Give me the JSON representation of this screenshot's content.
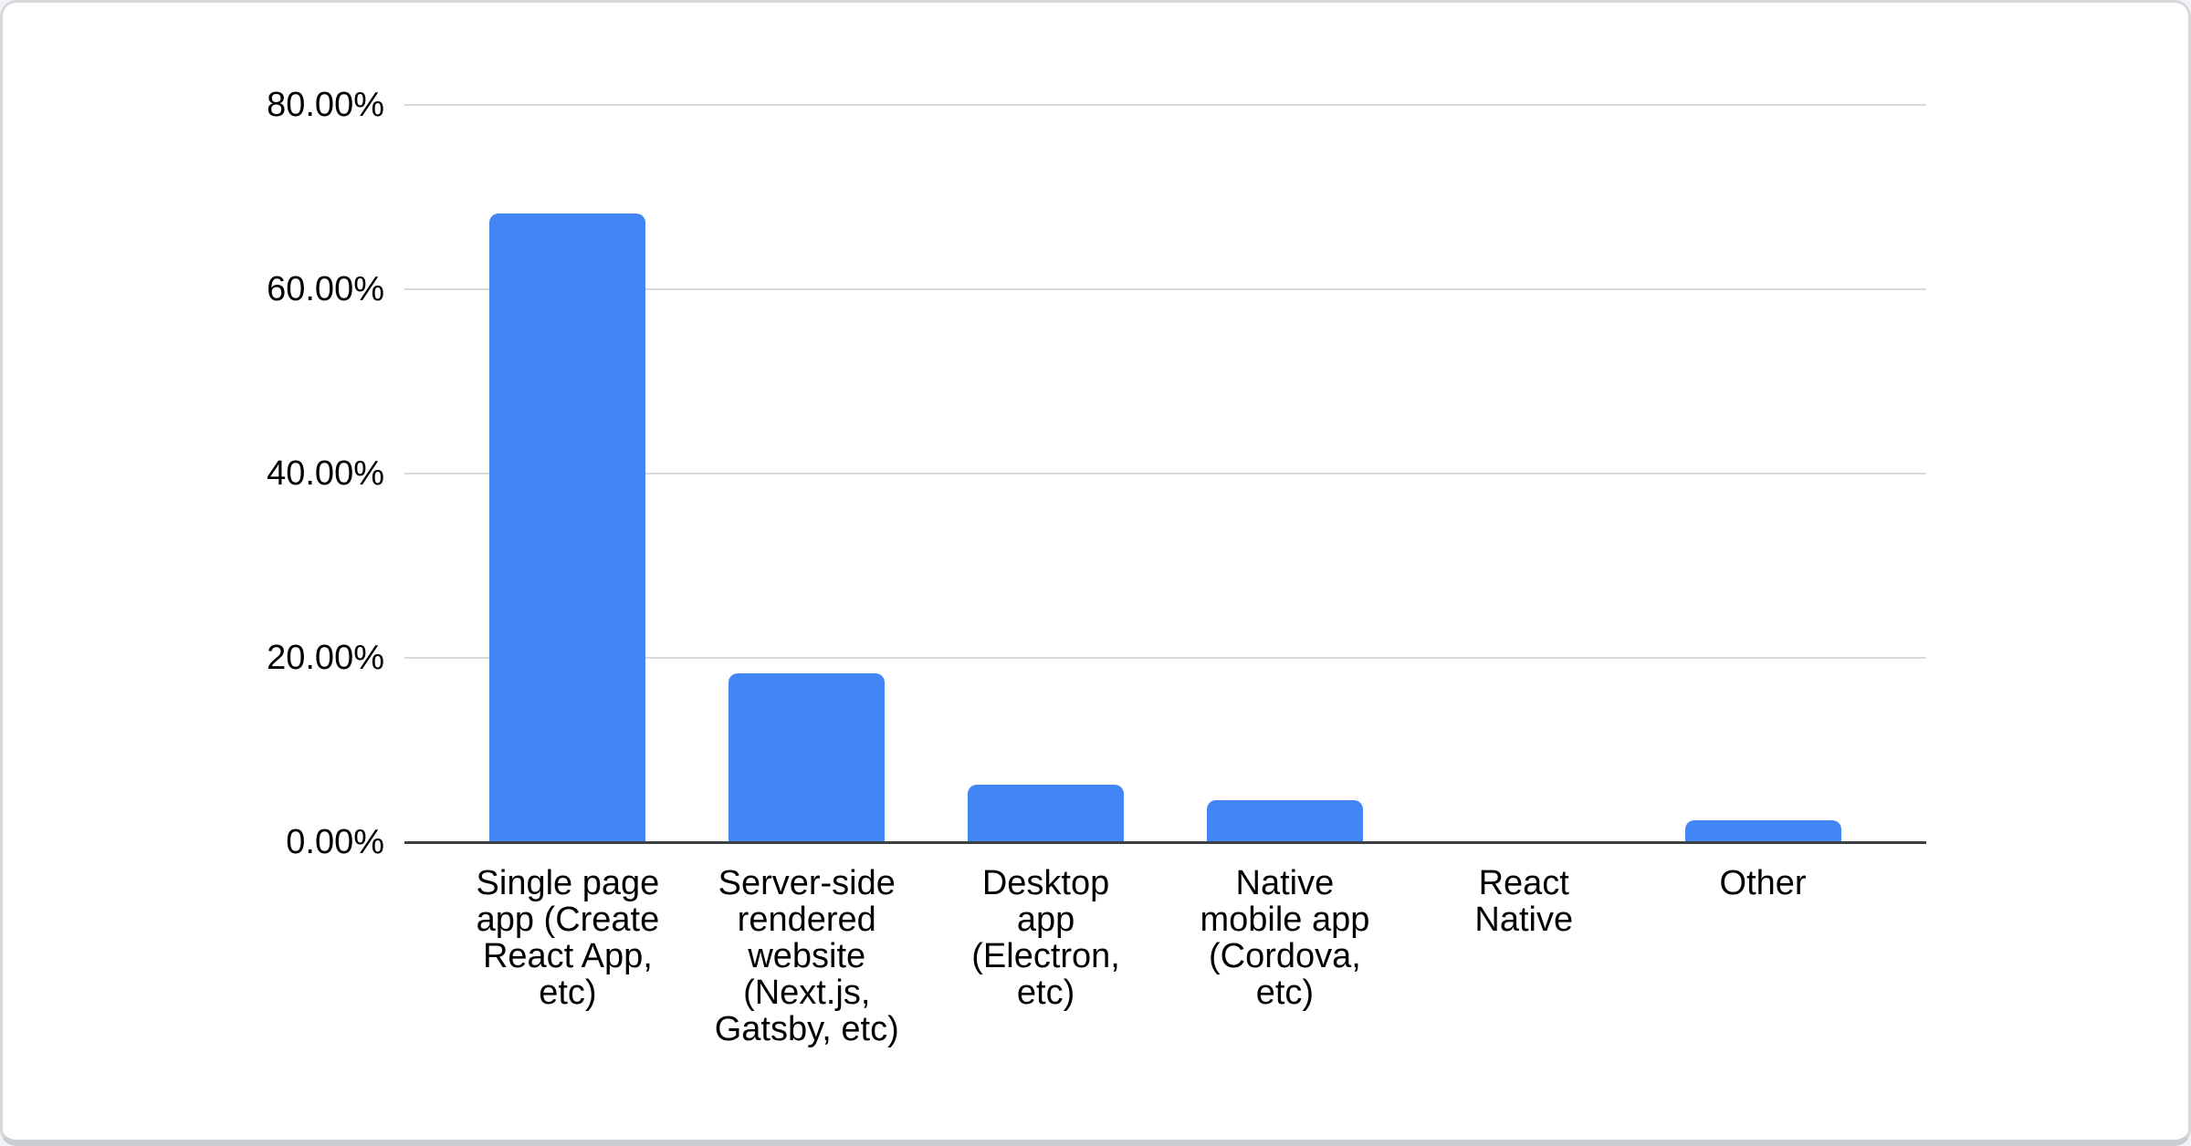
{
  "card": {
    "background": "#ffffff",
    "border_color": "#d5d9dd",
    "border_bottom_color": "#c9ced3"
  },
  "chart_data": {
    "type": "bar",
    "title": "",
    "xlabel": "",
    "ylabel": "",
    "categories": [
      "Single page app (Create React App, etc)",
      "Server-side rendered website (Next.js, Gatsby, etc)",
      "Desktop app (Electron, etc)",
      "Native mobile app (Cordova, etc)",
      "React Native",
      "Other"
    ],
    "category_label_lines": [
      "Single page\napp (Create\nReact App,\netc)",
      "Server-side\nrendered\nwebsite\n(Next.js,\nGatsby, etc)",
      "Desktop\napp\n(Electron,\netc)",
      "Native\nmobile app\n(Cordova,\netc)",
      "React\nNative",
      "Other"
    ],
    "values": [
      68.2,
      18.3,
      6.2,
      4.6,
      0,
      2.4
    ],
    "value_format": "percent",
    "ylim": [
      0,
      80
    ],
    "yticks": [
      0,
      20,
      40,
      60,
      80
    ],
    "ytick_labels": [
      "0.00%",
      "20.00%",
      "40.00%",
      "60.00%",
      "80.00%"
    ],
    "grid": true,
    "legend": false,
    "colors": {
      "bar": "#4285f4",
      "gridline": "#d9d9d9",
      "axis_line": "#3c4043",
      "label_text": "#000000"
    }
  }
}
